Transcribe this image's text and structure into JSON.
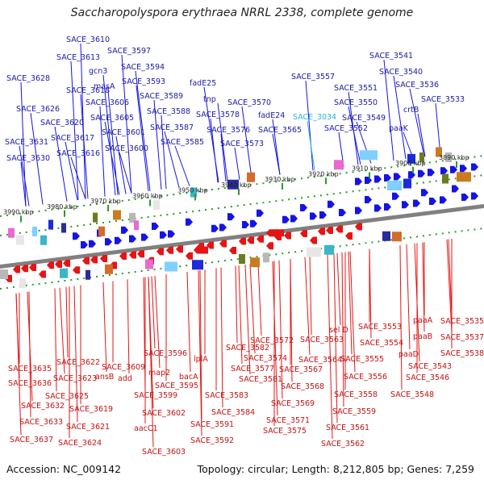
{
  "title": "Saccharopolyspora erythraea NRRL 2338, complete genome",
  "accession": "Accession: NC_009142",
  "summary": "Topology: circular; Length: 8,212,805 bp; Genes: 7,259",
  "colors": {
    "forward": "#1414e6",
    "reverse": "#e61414",
    "cyan_label": "#2ab7d6",
    "backbone": "#808080",
    "tick": "#2a9a2a"
  },
  "ticks": [
    "3990 kbp",
    "3980 kbp",
    "3970 kbp",
    "3960 kbp",
    "3950 kbp",
    "3940 kbp",
    "3930 kbp",
    "3920 kbp",
    "3910 kbp",
    "3900 kbp",
    "3890 kbp"
  ],
  "top_labels": [
    {
      "text": "SACE_3610",
      "cls": "lbl-top"
    },
    {
      "text": "SACE_3613",
      "cls": "lbl-top"
    },
    {
      "text": "SACE_3597",
      "cls": "lbl-top"
    },
    {
      "text": "gcn3",
      "cls": "lbl-top"
    },
    {
      "text": "SACE_3594",
      "cls": "lbl-top"
    },
    {
      "text": "SACE_3628",
      "cls": "lbl-top"
    },
    {
      "text": "SACE_3618",
      "cls": "lbl-top"
    },
    {
      "text": "masA",
      "cls": "lbl-top"
    },
    {
      "text": "SACE_3593",
      "cls": "lbl-top"
    },
    {
      "text": "fadE25",
      "cls": "lbl-top"
    },
    {
      "text": "SACE_3606",
      "cls": "lbl-top"
    },
    {
      "text": "SACE_3589",
      "cls": "lbl-top"
    },
    {
      "text": "tnp",
      "cls": "lbl-top"
    },
    {
      "text": "SACE_3626",
      "cls": "lbl-top"
    },
    {
      "text": "SACE_3605",
      "cls": "lbl-top"
    },
    {
      "text": "SACE_3588",
      "cls": "lbl-top"
    },
    {
      "text": "SACE_3578",
      "cls": "lbl-top"
    },
    {
      "text": "SACE_3570",
      "cls": "lbl-top"
    },
    {
      "text": "SACE_3620",
      "cls": "lbl-top"
    },
    {
      "text": "SACE_3587",
      "cls": "lbl-top"
    },
    {
      "text": "SACE_3576",
      "cls": "lbl-top"
    },
    {
      "text": "fadE24",
      "cls": "lbl-top"
    },
    {
      "text": "SACE_3601",
      "cls": "lbl-top"
    },
    {
      "text": "SACE_3617",
      "cls": "lbl-top"
    },
    {
      "text": "SACE_3585",
      "cls": "lbl-top"
    },
    {
      "text": "SACE_3573",
      "cls": "lbl-top"
    },
    {
      "text": "SACE_3565",
      "cls": "lbl-top"
    },
    {
      "text": "SACE_3631",
      "cls": "lbl-top"
    },
    {
      "text": "SACE_3600",
      "cls": "lbl-top"
    },
    {
      "text": "SACE_3616",
      "cls": "lbl-top"
    },
    {
      "text": "SACE_3630",
      "cls": "lbl-top"
    },
    {
      "text": "SACE_3557",
      "cls": "lbl-top"
    },
    {
      "text": "SACE_3551",
      "cls": "lbl-top"
    },
    {
      "text": "SACE_3550",
      "cls": "lbl-top"
    },
    {
      "text": "SACE_3549",
      "cls": "lbl-top"
    },
    {
      "text": "SACE_3552",
      "cls": "lbl-top"
    },
    {
      "text": "SACE_3034",
      "cls": "lbl-cyan"
    },
    {
      "text": "SACE_3541",
      "cls": "lbl-top"
    },
    {
      "text": "SACE_3540",
      "cls": "lbl-top"
    },
    {
      "text": "SACE_3536",
      "cls": "lbl-top"
    },
    {
      "text": "SACE_3533",
      "cls": "lbl-top"
    },
    {
      "text": "crtB",
      "cls": "lbl-top"
    },
    {
      "text": "paaK",
      "cls": "lbl-top"
    }
  ],
  "bottom_labels": [
    {
      "text": "SACE_3635"
    },
    {
      "text": "SACE_3622"
    },
    {
      "text": "SACE_3636"
    },
    {
      "text": "SACE_3623"
    },
    {
      "text": "SACE_3609"
    },
    {
      "text": "SACE_3625"
    },
    {
      "text": "ansB"
    },
    {
      "text": "SACE_3632"
    },
    {
      "text": "SACE_3619"
    },
    {
      "text": "SACE_3633"
    },
    {
      "text": "SACE_3621"
    },
    {
      "text": "SACE_3637"
    },
    {
      "text": "SACE_3624"
    },
    {
      "text": "add"
    },
    {
      "text": "SACE_3596"
    },
    {
      "text": "map2"
    },
    {
      "text": "SACE_3595"
    },
    {
      "text": "SACE_3599"
    },
    {
      "text": "bacA"
    },
    {
      "text": "SACE_3602"
    },
    {
      "text": "aacC1"
    },
    {
      "text": "SACE_3591"
    },
    {
      "text": "SACE_3592"
    },
    {
      "text": "SACE_3603"
    },
    {
      "text": "lplA"
    },
    {
      "text": "SACE_3582"
    },
    {
      "text": "SACE_3577"
    },
    {
      "text": "SACE_3581"
    },
    {
      "text": "SACE_3583"
    },
    {
      "text": "SACE_3584"
    },
    {
      "text": "SACE_3572"
    },
    {
      "text": "SACE_3574"
    },
    {
      "text": "SACE_3567"
    },
    {
      "text": "SACE_3568"
    },
    {
      "text": "SACE_3569"
    },
    {
      "text": "SACE_3571"
    },
    {
      "text": "SACE_3575"
    },
    {
      "text": "SACE_3563"
    },
    {
      "text": "sel D"
    },
    {
      "text": "SACE_3564"
    },
    {
      "text": "SACE_3553"
    },
    {
      "text": "SACE_3554"
    },
    {
      "text": "SACE_3555"
    },
    {
      "text": "SACE_3556"
    },
    {
      "text": "SACE_3558"
    },
    {
      "text": "SACE_3559"
    },
    {
      "text": "SACE_3561"
    },
    {
      "text": "SACE_3562"
    },
    {
      "text": "paaA"
    },
    {
      "text": "paaB"
    },
    {
      "text": "paaD"
    },
    {
      "text": "SACE_3543"
    },
    {
      "text": "SACE_3546"
    },
    {
      "text": "SACE_3548"
    },
    {
      "text": "SACE_3535"
    },
    {
      "text": "SACE_3537"
    },
    {
      "text": "SACE_3538"
    }
  ]
}
